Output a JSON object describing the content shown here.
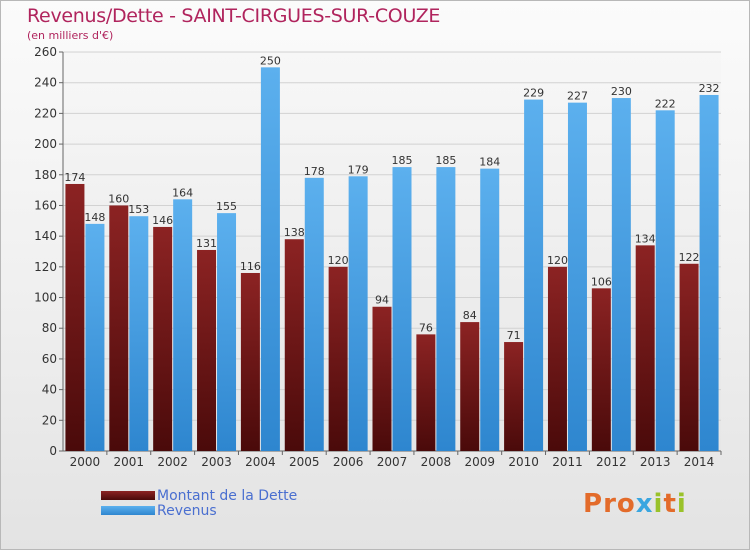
{
  "chart_data": {
    "type": "bar",
    "title": "Revenus/Dette - SAINT-CIRGUES-SUR-COUZE",
    "subtitle": "(en milliers d'€)",
    "categories": [
      "2000",
      "2001",
      "2002",
      "2003",
      "2004",
      "2005",
      "2006",
      "2007",
      "2008",
      "2009",
      "2010",
      "2011",
      "2012",
      "2013",
      "2014"
    ],
    "series": [
      {
        "name": "Montant de la Dette",
        "color": "#7a1a1a",
        "values": [
          174,
          160,
          146,
          131,
          116,
          138,
          120,
          94,
          76,
          84,
          71,
          120,
          106,
          134,
          122
        ]
      },
      {
        "name": "Revenus",
        "color": "#4aa3e6",
        "values": [
          148,
          153,
          164,
          155,
          250,
          178,
          179,
          185,
          185,
          184,
          229,
          227,
          230,
          222,
          232
        ]
      }
    ],
    "ylim": [
      0,
      260
    ],
    "yticks": [
      0,
      20,
      40,
      60,
      80,
      100,
      120,
      140,
      160,
      180,
      200,
      220,
      240,
      260
    ],
    "grid": true,
    "legend": "bottom-left"
  },
  "logo": {
    "text": "Proxiti",
    "colors": [
      "#e36b2a",
      "#e36b2a",
      "#e36b2a",
      "#3aa6e0",
      "#9ac22a",
      "#e36b2a",
      "#9ac22a"
    ]
  }
}
